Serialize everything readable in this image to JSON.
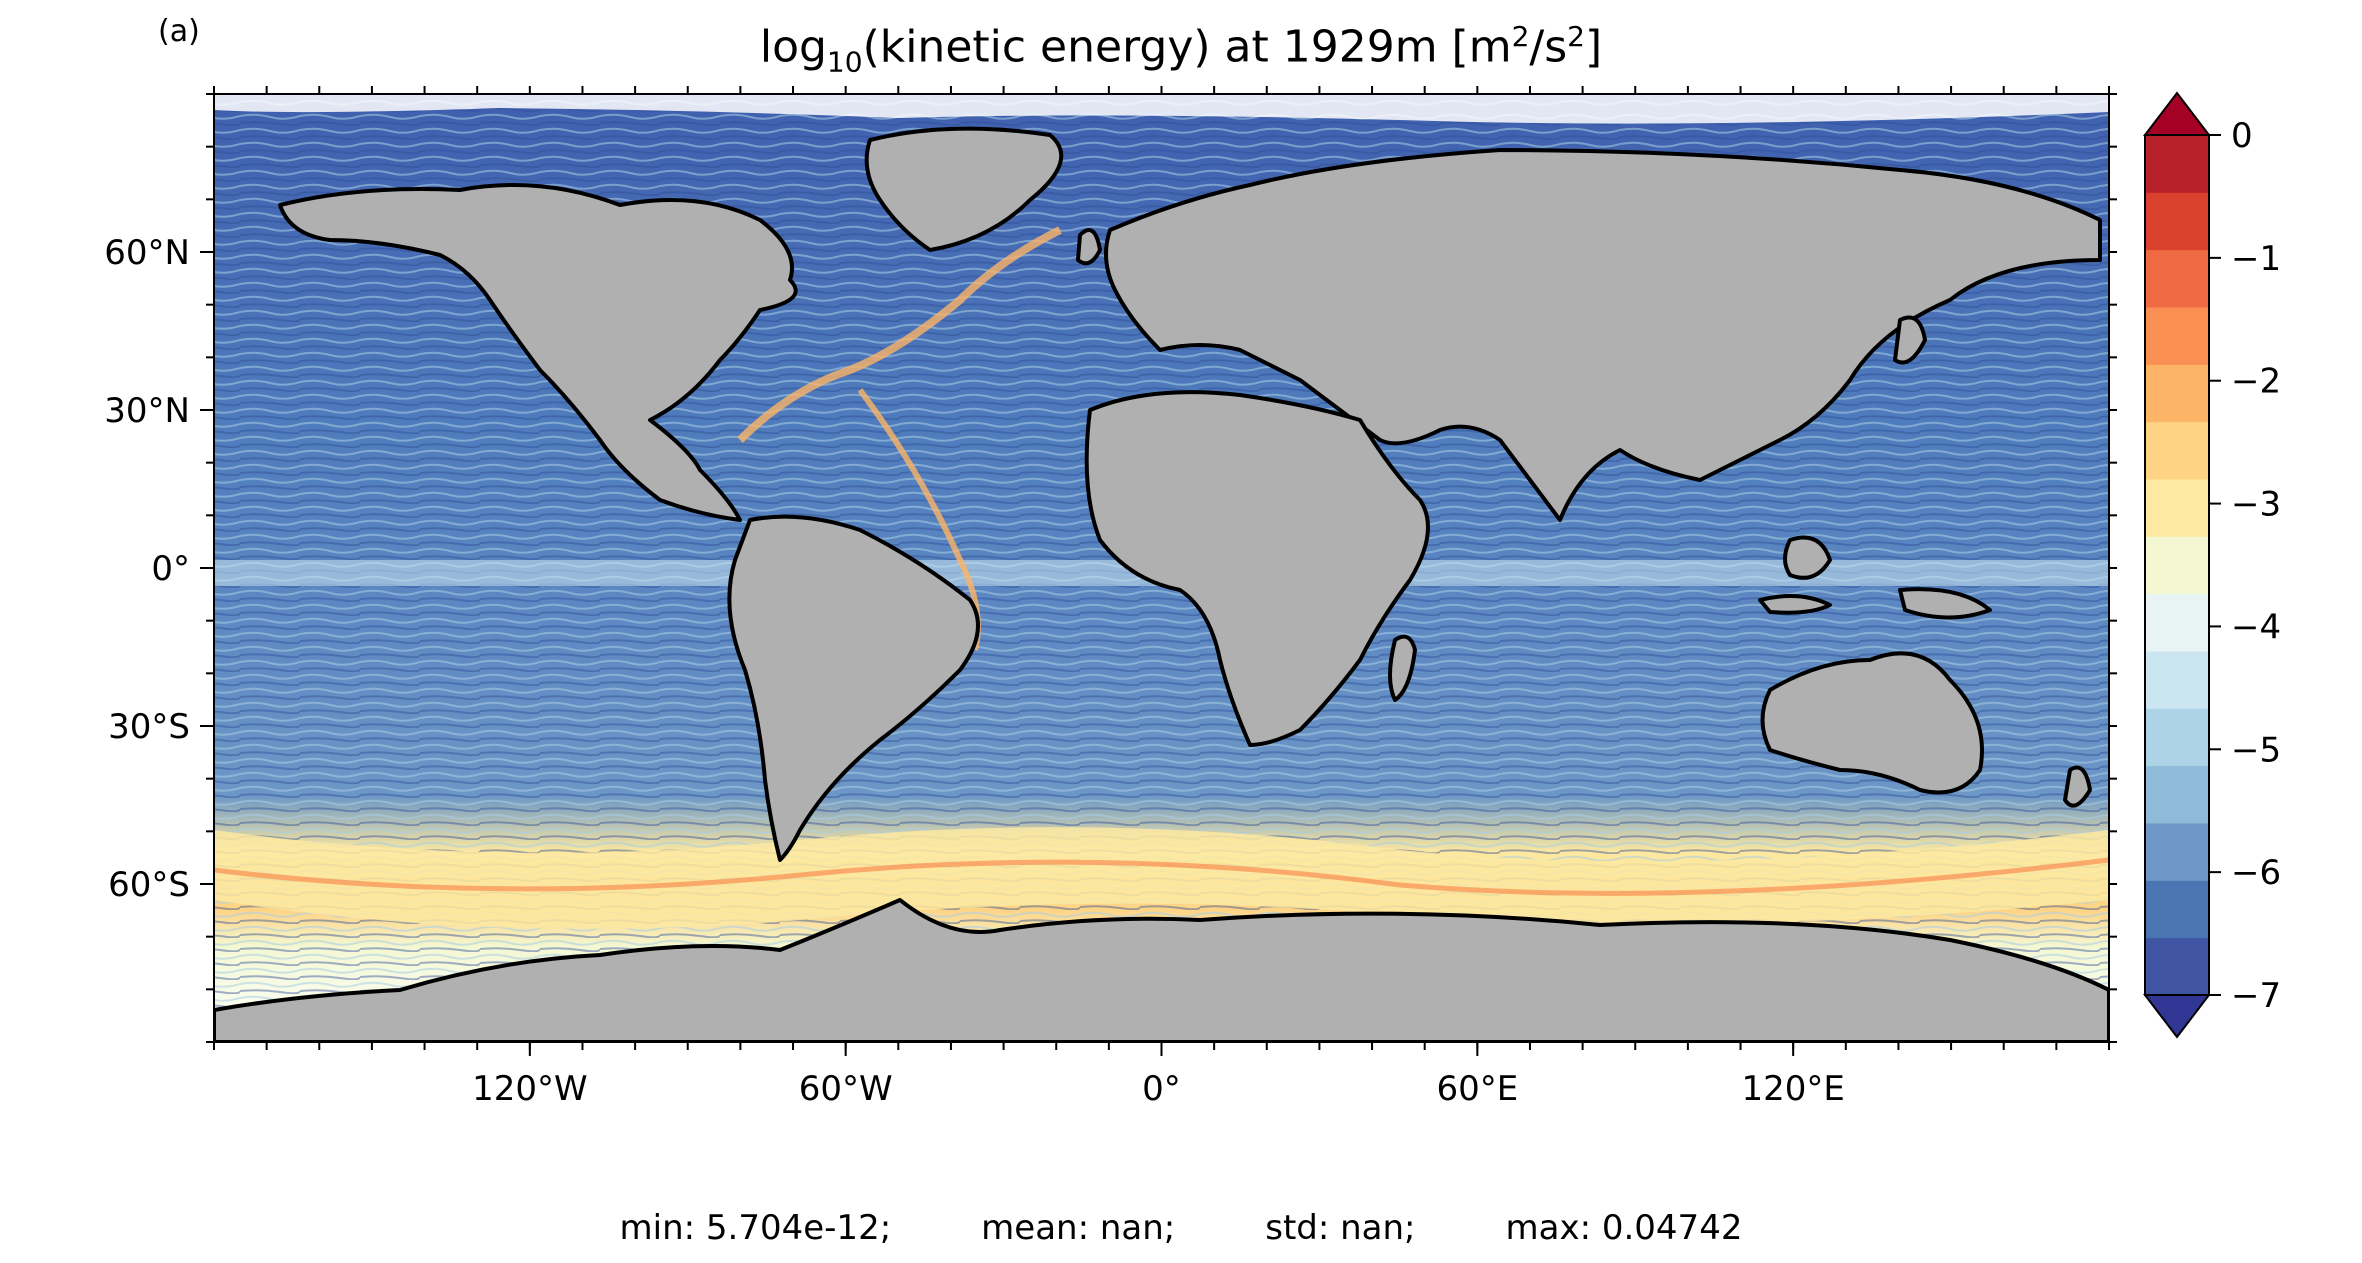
{
  "panel_label": "(a)",
  "title": {
    "prefix": "log",
    "prefix_sub": "10",
    "middle": "(kinetic energy) at 1929m [m",
    "sup1": "2",
    "mid2": "/s",
    "sup2": "2",
    "suffix": "]"
  },
  "map": {
    "projection": "PlateCarree",
    "lon_range": [
      -180,
      180
    ],
    "lat_range": [
      -90,
      90
    ],
    "x_ticks": [
      "120°W",
      "60°W",
      "0°",
      "60°E",
      "120°E"
    ],
    "x_tick_values": [
      -120,
      -60,
      0,
      60,
      120
    ],
    "y_ticks": [
      "60°N",
      "30°N",
      "0°",
      "30°S",
      "60°S"
    ],
    "y_tick_values": [
      60,
      30,
      0,
      -30,
      -60
    ],
    "land_color": "#b0b0b0",
    "coastline_color": "#000000"
  },
  "colorbar": {
    "ticks": [
      "0",
      "−1",
      "−2",
      "−3",
      "−4",
      "−5",
      "−6",
      "−7"
    ],
    "range": [
      -7,
      0
    ],
    "levels": 16,
    "extend": "both",
    "colormap": "RdYlBu_r",
    "colors": [
      "#313695",
      "#3f55a4",
      "#4b74b2",
      "#6d97c6",
      "#8fbbd8",
      "#add4e6",
      "#cbe6f0",
      "#e7f4f3",
      "#f3f8d3",
      "#fde9a1",
      "#fed384",
      "#fdb466",
      "#f98f53",
      "#ef6a43",
      "#d9402d",
      "#b82129",
      "#a50026"
    ]
  },
  "stats": {
    "min": "min: 5.704e-12;",
    "mean": "mean: nan;",
    "std": "std: nan;",
    "max": "max: 0.04742"
  }
}
